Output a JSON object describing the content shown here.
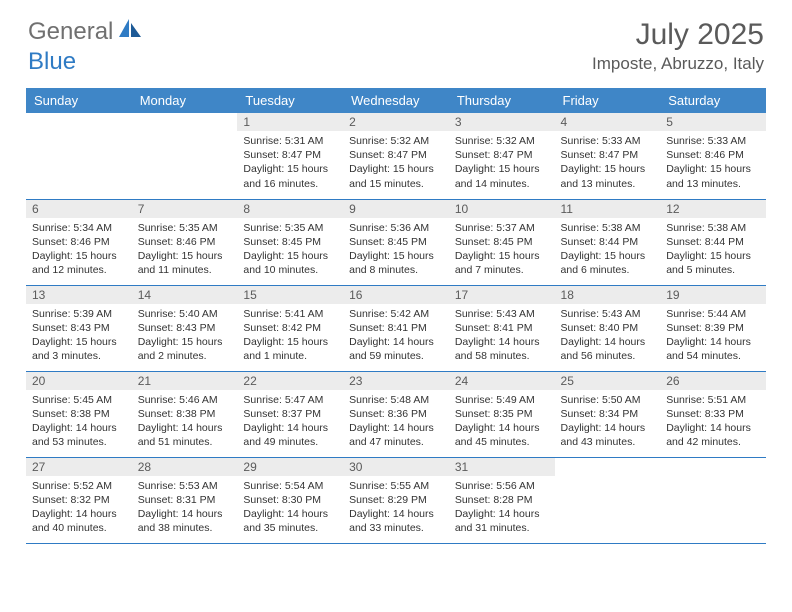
{
  "brand": {
    "text1": "General",
    "text2": "Blue"
  },
  "title": "July 2025",
  "location": "Imposte, Abruzzo, Italy",
  "colors": {
    "header_bg": "#3f86c7",
    "day_number_bg": "#ececec",
    "border": "#2f7bc4",
    "logo_gray": "#707070",
    "logo_blue": "#2f7bc4"
  },
  "weekdays": [
    "Sunday",
    "Monday",
    "Tuesday",
    "Wednesday",
    "Thursday",
    "Friday",
    "Saturday"
  ],
  "weeks": [
    [
      null,
      null,
      {
        "n": "1",
        "sr": "5:31 AM",
        "ss": "8:47 PM",
        "dl": "15 hours and 16 minutes."
      },
      {
        "n": "2",
        "sr": "5:32 AM",
        "ss": "8:47 PM",
        "dl": "15 hours and 15 minutes."
      },
      {
        "n": "3",
        "sr": "5:32 AM",
        "ss": "8:47 PM",
        "dl": "15 hours and 14 minutes."
      },
      {
        "n": "4",
        "sr": "5:33 AM",
        "ss": "8:47 PM",
        "dl": "15 hours and 13 minutes."
      },
      {
        "n": "5",
        "sr": "5:33 AM",
        "ss": "8:46 PM",
        "dl": "15 hours and 13 minutes."
      }
    ],
    [
      {
        "n": "6",
        "sr": "5:34 AM",
        "ss": "8:46 PM",
        "dl": "15 hours and 12 minutes."
      },
      {
        "n": "7",
        "sr": "5:35 AM",
        "ss": "8:46 PM",
        "dl": "15 hours and 11 minutes."
      },
      {
        "n": "8",
        "sr": "5:35 AM",
        "ss": "8:45 PM",
        "dl": "15 hours and 10 minutes."
      },
      {
        "n": "9",
        "sr": "5:36 AM",
        "ss": "8:45 PM",
        "dl": "15 hours and 8 minutes."
      },
      {
        "n": "10",
        "sr": "5:37 AM",
        "ss": "8:45 PM",
        "dl": "15 hours and 7 minutes."
      },
      {
        "n": "11",
        "sr": "5:38 AM",
        "ss": "8:44 PM",
        "dl": "15 hours and 6 minutes."
      },
      {
        "n": "12",
        "sr": "5:38 AM",
        "ss": "8:44 PM",
        "dl": "15 hours and 5 minutes."
      }
    ],
    [
      {
        "n": "13",
        "sr": "5:39 AM",
        "ss": "8:43 PM",
        "dl": "15 hours and 3 minutes."
      },
      {
        "n": "14",
        "sr": "5:40 AM",
        "ss": "8:43 PM",
        "dl": "15 hours and 2 minutes."
      },
      {
        "n": "15",
        "sr": "5:41 AM",
        "ss": "8:42 PM",
        "dl": "15 hours and 1 minute."
      },
      {
        "n": "16",
        "sr": "5:42 AM",
        "ss": "8:41 PM",
        "dl": "14 hours and 59 minutes."
      },
      {
        "n": "17",
        "sr": "5:43 AM",
        "ss": "8:41 PM",
        "dl": "14 hours and 58 minutes."
      },
      {
        "n": "18",
        "sr": "5:43 AM",
        "ss": "8:40 PM",
        "dl": "14 hours and 56 minutes."
      },
      {
        "n": "19",
        "sr": "5:44 AM",
        "ss": "8:39 PM",
        "dl": "14 hours and 54 minutes."
      }
    ],
    [
      {
        "n": "20",
        "sr": "5:45 AM",
        "ss": "8:38 PM",
        "dl": "14 hours and 53 minutes."
      },
      {
        "n": "21",
        "sr": "5:46 AM",
        "ss": "8:38 PM",
        "dl": "14 hours and 51 minutes."
      },
      {
        "n": "22",
        "sr": "5:47 AM",
        "ss": "8:37 PM",
        "dl": "14 hours and 49 minutes."
      },
      {
        "n": "23",
        "sr": "5:48 AM",
        "ss": "8:36 PM",
        "dl": "14 hours and 47 minutes."
      },
      {
        "n": "24",
        "sr": "5:49 AM",
        "ss": "8:35 PM",
        "dl": "14 hours and 45 minutes."
      },
      {
        "n": "25",
        "sr": "5:50 AM",
        "ss": "8:34 PM",
        "dl": "14 hours and 43 minutes."
      },
      {
        "n": "26",
        "sr": "5:51 AM",
        "ss": "8:33 PM",
        "dl": "14 hours and 42 minutes."
      }
    ],
    [
      {
        "n": "27",
        "sr": "5:52 AM",
        "ss": "8:32 PM",
        "dl": "14 hours and 40 minutes."
      },
      {
        "n": "28",
        "sr": "5:53 AM",
        "ss": "8:31 PM",
        "dl": "14 hours and 38 minutes."
      },
      {
        "n": "29",
        "sr": "5:54 AM",
        "ss": "8:30 PM",
        "dl": "14 hours and 35 minutes."
      },
      {
        "n": "30",
        "sr": "5:55 AM",
        "ss": "8:29 PM",
        "dl": "14 hours and 33 minutes."
      },
      {
        "n": "31",
        "sr": "5:56 AM",
        "ss": "8:28 PM",
        "dl": "14 hours and 31 minutes."
      },
      null,
      null
    ]
  ],
  "labels": {
    "sunrise": "Sunrise: ",
    "sunset": "Sunset: ",
    "daylight": "Daylight: "
  }
}
